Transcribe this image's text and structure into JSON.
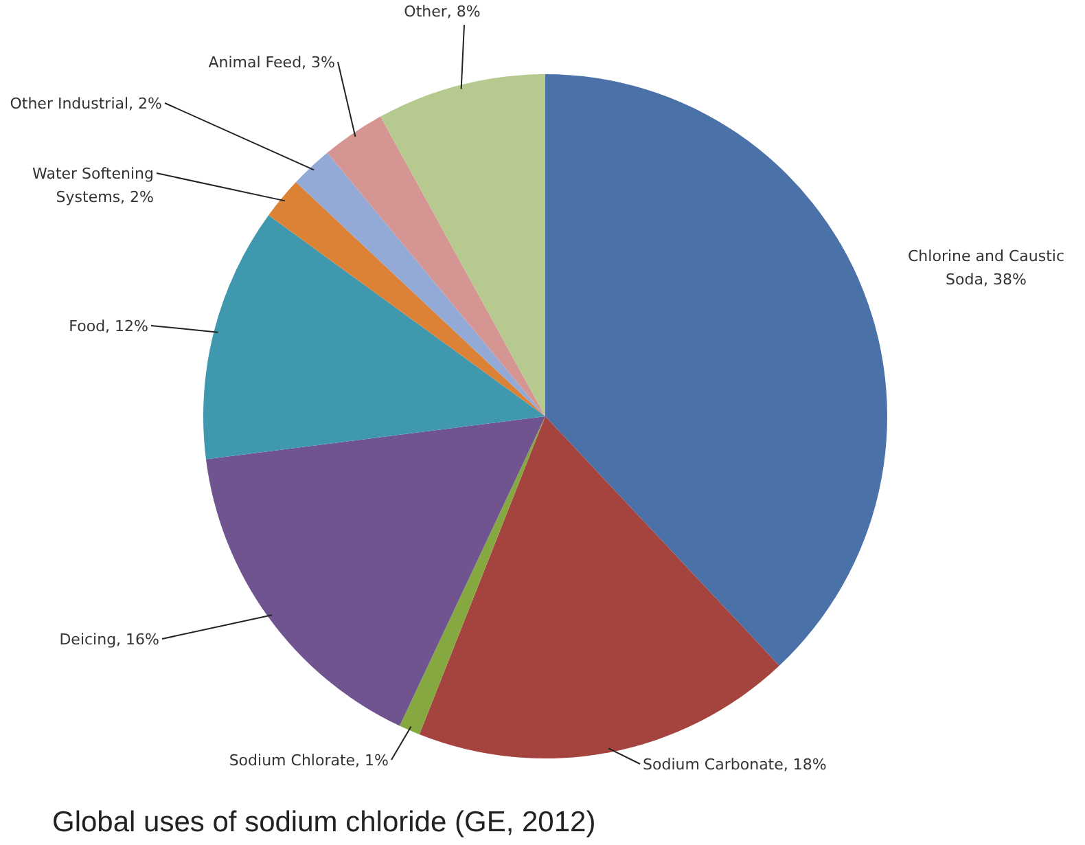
{
  "chart_data": {
    "type": "pie",
    "title": "Global uses of sodium chloride (GE, 2012)",
    "categories": [
      "Chlorine and Caustic Soda",
      "Sodium Carbonate",
      "Sodium Chlorate",
      "Deicing",
      "Food",
      "Water Softening Systems",
      "Other Industrial",
      "Animal Feed",
      "Other"
    ],
    "values": [
      38,
      18,
      1,
      16,
      12,
      2,
      2,
      3,
      8
    ],
    "value_labels": [
      "38%",
      "18%",
      "1%",
      "16%",
      "12%",
      "2%",
      "2%",
      "3%",
      "8%"
    ],
    "colors": [
      "#4a72a8",
      "#a5443f",
      "#86a840",
      "#6f5490",
      "#3f98ae",
      "#dc8236",
      "#93a9d6",
      "#d59592",
      "#b6c98e"
    ]
  }
}
